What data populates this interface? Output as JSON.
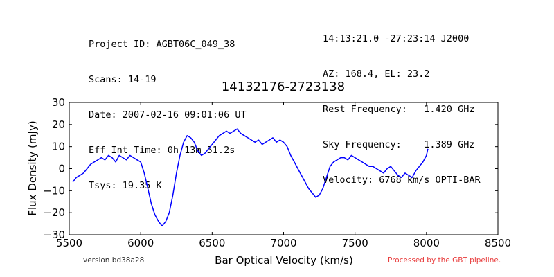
{
  "header": {
    "left_lines": [
      "Project ID: AGBT06C_049_38",
      "Scans: 14-19",
      "Date: 2007-02-16 09:01:06 UT",
      "Eff Int Time: 0h 13m 51.2s",
      "Tsys: 19.35 K"
    ],
    "right_lines": [
      "14:13:21.0 -27:23:14 J2000",
      "AZ: 168.4, EL: 23.2",
      "Rest Frequency:   1.420 GHz",
      "Sky Frequency:    1.389 GHz",
      "Velocity: 6768 km/s OPTI-BAR"
    ]
  },
  "footer": {
    "version": "version bd38a28",
    "processed": "Processed by the GBT pipeline."
  },
  "colors": {
    "line": "#0000ff",
    "processed_text": "#e83a3a"
  },
  "chart_data": {
    "type": "line",
    "title": "14132176-2723138",
    "xlabel": "Bar Optical Velocity (km/s)",
    "ylabel": "Flux Density (mJy)",
    "xlim": [
      5500,
      8500
    ],
    "ylim": [
      -30,
      30
    ],
    "xticks": [
      5500,
      6000,
      6500,
      7000,
      7500,
      8000,
      8500
    ],
    "yticks": [
      -30,
      -20,
      -10,
      0,
      10,
      20,
      30
    ],
    "ytick_labels": [
      "−30",
      "−20",
      "−10",
      "0",
      "10",
      "20",
      "30"
    ],
    "grid": false,
    "series": [
      {
        "x": [
          5525,
          5550,
          5575,
          5600,
          5625,
          5650,
          5675,
          5700,
          5725,
          5750,
          5775,
          5800,
          5825,
          5850,
          5875,
          5900,
          5925,
          5950,
          5975,
          6000,
          6025,
          6050,
          6075,
          6100,
          6125,
          6150,
          6175,
          6200,
          6225,
          6250,
          6275,
          6300,
          6325,
          6350,
          6375,
          6400,
          6425,
          6450,
          6475,
          6500,
          6525,
          6550,
          6575,
          6600,
          6625,
          6650,
          6675,
          6700,
          6725,
          6750,
          6775,
          6800,
          6825,
          6850,
          6875,
          6900,
          6925,
          6950,
          6975,
          7000,
          7025,
          7050,
          7075,
          7100,
          7125,
          7150,
          7175,
          7200,
          7225,
          7250,
          7275,
          7300,
          7325,
          7350,
          7375,
          7400,
          7425,
          7450,
          7475,
          7500,
          7525,
          7550,
          7575,
          7600,
          7625,
          7650,
          7675,
          7700,
          7725,
          7750,
          7775,
          7800,
          7825,
          7850,
          7875,
          7900,
          7925,
          7950,
          7975,
          8000,
          8010
        ],
        "y": [
          -6,
          -4,
          -3,
          -2,
          0,
          2,
          3,
          4,
          5,
          4,
          6,
          5,
          3,
          6,
          5,
          4,
          6,
          5,
          4,
          3,
          -2,
          -9,
          -16,
          -21,
          -24,
          -26,
          -24,
          -20,
          -12,
          -2,
          6,
          12,
          15,
          14,
          12,
          8,
          6,
          7,
          9,
          11,
          13,
          15,
          16,
          17,
          16,
          17,
          18,
          16,
          15,
          14,
          13,
          12,
          13,
          11,
          12,
          13,
          14,
          12,
          13,
          12,
          10,
          6,
          3,
          0,
          -3,
          -6,
          -9,
          -11,
          -13,
          -12,
          -9,
          -4,
          1,
          3,
          4,
          5,
          5,
          4,
          6,
          5,
          4,
          3,
          2,
          1,
          1,
          0,
          -1,
          -2,
          0,
          1,
          -1,
          -3,
          -4,
          -2,
          -3,
          -4,
          -1,
          1,
          3,
          6,
          9
        ]
      }
    ]
  }
}
